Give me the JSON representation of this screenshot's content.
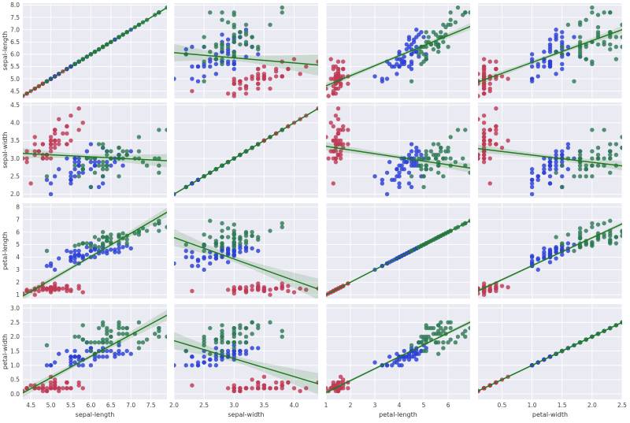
{
  "chart_data": {
    "type": "scatter",
    "layout": "pairplot",
    "variables": [
      "sepal-length",
      "sepal-width",
      "petal-length",
      "petal-width"
    ],
    "axes": {
      "sepal-length": {
        "xlim": [
          4.3,
          7.9
        ],
        "ylim": [
          4.2,
          8.08
        ],
        "xticks": [
          "4.5",
          "5.0",
          "5.5",
          "6.0",
          "6.5",
          "7.0",
          "7.5"
        ],
        "yticks": [
          "4.5",
          "5.0",
          "5.5",
          "6.0",
          "6.5",
          "7.0",
          "7.5",
          "8.0"
        ]
      },
      "sepal-width": {
        "xlim": [
          2.0,
          4.4
        ],
        "ylim": [
          1.9,
          4.57
        ],
        "xticks": [
          "2.0",
          "2.5",
          "3.0",
          "3.5",
          "4.0"
        ],
        "yticks": [
          "2.0",
          "2.5",
          "3.0",
          "3.5",
          "4.0",
          "4.5"
        ]
      },
      "petal-length": {
        "xlim": [
          1.0,
          6.9
        ],
        "ylim": [
          0.7,
          8.3
        ],
        "xticks": [
          "1",
          "2",
          "3",
          "4",
          "5",
          "6"
        ],
        "yticks": [
          "1",
          "2",
          "3",
          "4",
          "5",
          "6",
          "7",
          "8"
        ]
      },
      "petal-width": {
        "xlim": [
          0.1,
          2.5
        ],
        "ylim": [
          -0.19,
          3.14
        ],
        "xticks": [
          "0.5",
          "1.0",
          "1.5",
          "2.0",
          "2.5"
        ],
        "yticks": [
          "0.0",
          "0.5",
          "1.0",
          "1.5",
          "2.0",
          "2.5",
          "3.0"
        ]
      }
    },
    "grid": true,
    "regression": {
      "fit": "linear",
      "ci_band": true,
      "color": "#1f7a1f"
    },
    "colors": {
      "background": "#eaeaf2",
      "grid": "#ffffff",
      "species_1": "#c03a55",
      "species_2": "#2b40d4",
      "species_3": "#2f7a56"
    },
    "groups": [
      {
        "color_key": "species_1",
        "points": [
          [
            5.1,
            3.5,
            1.4,
            0.2
          ],
          [
            4.9,
            3.0,
            1.4,
            0.2
          ],
          [
            4.7,
            3.2,
            1.3,
            0.2
          ],
          [
            4.6,
            3.1,
            1.5,
            0.2
          ],
          [
            5.0,
            3.6,
            1.4,
            0.2
          ],
          [
            5.4,
            3.9,
            1.7,
            0.4
          ],
          [
            4.6,
            3.4,
            1.4,
            0.3
          ],
          [
            5.0,
            3.4,
            1.5,
            0.2
          ],
          [
            4.4,
            2.9,
            1.4,
            0.2
          ],
          [
            4.9,
            3.1,
            1.5,
            0.1
          ],
          [
            5.4,
            3.7,
            1.5,
            0.2
          ],
          [
            4.8,
            3.4,
            1.6,
            0.2
          ],
          [
            4.8,
            3.0,
            1.4,
            0.1
          ],
          [
            4.3,
            3.0,
            1.1,
            0.1
          ],
          [
            5.8,
            4.0,
            1.2,
            0.2
          ],
          [
            5.7,
            4.4,
            1.5,
            0.4
          ],
          [
            5.4,
            3.9,
            1.3,
            0.4
          ],
          [
            5.1,
            3.5,
            1.4,
            0.3
          ],
          [
            5.7,
            3.8,
            1.7,
            0.3
          ],
          [
            5.1,
            3.8,
            1.5,
            0.3
          ],
          [
            5.4,
            3.4,
            1.7,
            0.2
          ],
          [
            5.1,
            3.7,
            1.5,
            0.4
          ],
          [
            4.6,
            3.6,
            1.0,
            0.2
          ],
          [
            5.1,
            3.3,
            1.7,
            0.5
          ],
          [
            4.8,
            3.4,
            1.9,
            0.2
          ],
          [
            5.0,
            3.0,
            1.6,
            0.2
          ],
          [
            5.0,
            3.4,
            1.6,
            0.4
          ],
          [
            5.2,
            3.5,
            1.5,
            0.2
          ],
          [
            5.2,
            3.4,
            1.4,
            0.2
          ],
          [
            4.7,
            3.2,
            1.6,
            0.2
          ],
          [
            4.8,
            3.1,
            1.6,
            0.2
          ],
          [
            5.4,
            3.4,
            1.5,
            0.4
          ],
          [
            5.2,
            4.1,
            1.5,
            0.1
          ],
          [
            5.5,
            4.2,
            1.4,
            0.2
          ],
          [
            4.9,
            3.1,
            1.5,
            0.1
          ],
          [
            5.0,
            3.2,
            1.2,
            0.2
          ],
          [
            5.5,
            3.5,
            1.3,
            0.2
          ],
          [
            4.9,
            3.1,
            1.5,
            0.1
          ],
          [
            4.4,
            3.0,
            1.3,
            0.2
          ],
          [
            5.1,
            3.4,
            1.5,
            0.2
          ],
          [
            5.0,
            3.5,
            1.3,
            0.3
          ],
          [
            4.5,
            2.3,
            1.3,
            0.3
          ],
          [
            4.4,
            3.2,
            1.3,
            0.2
          ],
          [
            5.0,
            3.5,
            1.6,
            0.6
          ],
          [
            5.1,
            3.8,
            1.9,
            0.4
          ],
          [
            4.8,
            3.0,
            1.4,
            0.3
          ],
          [
            5.1,
            3.8,
            1.6,
            0.2
          ],
          [
            4.6,
            3.2,
            1.4,
            0.2
          ],
          [
            5.3,
            3.7,
            1.5,
            0.2
          ],
          [
            5.0,
            3.3,
            1.4,
            0.2
          ]
        ]
      },
      {
        "color_key": "species_2",
        "points": [
          [
            7.0,
            3.2,
            4.7,
            1.4
          ],
          [
            6.4,
            3.2,
            4.5,
            1.5
          ],
          [
            6.9,
            3.1,
            4.9,
            1.5
          ],
          [
            5.5,
            2.3,
            4.0,
            1.3
          ],
          [
            6.5,
            2.8,
            4.6,
            1.5
          ],
          [
            5.7,
            2.8,
            4.5,
            1.3
          ],
          [
            6.3,
            3.3,
            4.7,
            1.6
          ],
          [
            4.9,
            2.4,
            3.3,
            1.0
          ],
          [
            6.6,
            2.9,
            4.6,
            1.3
          ],
          [
            5.2,
            2.7,
            3.9,
            1.4
          ],
          [
            5.0,
            2.0,
            3.5,
            1.0
          ],
          [
            5.9,
            3.0,
            4.2,
            1.5
          ],
          [
            6.0,
            2.2,
            4.0,
            1.0
          ],
          [
            6.1,
            2.9,
            4.7,
            1.4
          ],
          [
            5.6,
            2.9,
            3.6,
            1.3
          ],
          [
            6.7,
            3.1,
            4.4,
            1.4
          ],
          [
            5.6,
            3.0,
            4.5,
            1.5
          ],
          [
            5.8,
            2.7,
            4.1,
            1.0
          ],
          [
            6.2,
            2.2,
            4.5,
            1.5
          ],
          [
            5.6,
            2.5,
            3.9,
            1.1
          ],
          [
            5.9,
            3.2,
            4.8,
            1.8
          ],
          [
            6.1,
            2.8,
            4.0,
            1.3
          ],
          [
            6.3,
            2.5,
            4.9,
            1.5
          ],
          [
            6.1,
            2.8,
            4.7,
            1.2
          ],
          [
            6.4,
            2.9,
            4.3,
            1.3
          ],
          [
            6.6,
            3.0,
            4.4,
            1.4
          ],
          [
            6.8,
            2.8,
            4.8,
            1.4
          ],
          [
            6.7,
            3.0,
            5.0,
            1.7
          ],
          [
            6.0,
            2.9,
            4.5,
            1.5
          ],
          [
            5.7,
            2.6,
            3.5,
            1.0
          ],
          [
            5.5,
            2.4,
            3.8,
            1.1
          ],
          [
            5.5,
            2.4,
            3.7,
            1.0
          ],
          [
            5.8,
            2.7,
            3.9,
            1.2
          ],
          [
            6.0,
            2.7,
            5.1,
            1.6
          ],
          [
            5.4,
            3.0,
            4.5,
            1.5
          ],
          [
            6.0,
            3.4,
            4.5,
            1.6
          ],
          [
            6.7,
            3.1,
            4.7,
            1.5
          ],
          [
            6.3,
            2.3,
            4.4,
            1.3
          ],
          [
            5.6,
            3.0,
            4.1,
            1.3
          ],
          [
            5.5,
            2.5,
            4.0,
            1.3
          ],
          [
            5.5,
            2.6,
            4.4,
            1.2
          ],
          [
            6.1,
            3.0,
            4.6,
            1.4
          ],
          [
            5.8,
            2.6,
            4.0,
            1.2
          ],
          [
            5.0,
            2.3,
            3.3,
            1.0
          ],
          [
            5.6,
            2.7,
            4.2,
            1.3
          ],
          [
            5.7,
            3.0,
            4.2,
            1.2
          ],
          [
            5.7,
            2.9,
            4.2,
            1.3
          ],
          [
            6.2,
            2.9,
            4.3,
            1.3
          ],
          [
            5.1,
            2.5,
            3.0,
            1.1
          ],
          [
            5.7,
            2.8,
            4.1,
            1.3
          ]
        ]
      },
      {
        "color_key": "species_3",
        "points": [
          [
            6.3,
            3.3,
            6.0,
            2.5
          ],
          [
            5.8,
            2.7,
            5.1,
            1.9
          ],
          [
            7.1,
            3.0,
            5.9,
            2.1
          ],
          [
            6.3,
            2.9,
            5.6,
            1.8
          ],
          [
            6.5,
            3.0,
            5.8,
            2.2
          ],
          [
            7.6,
            3.0,
            6.6,
            2.1
          ],
          [
            4.9,
            2.5,
            4.5,
            1.7
          ],
          [
            7.3,
            2.9,
            6.3,
            1.8
          ],
          [
            6.7,
            2.5,
            5.8,
            1.8
          ],
          [
            7.2,
            3.6,
            6.1,
            2.5
          ],
          [
            6.5,
            3.2,
            5.1,
            2.0
          ],
          [
            6.4,
            2.7,
            5.3,
            1.9
          ],
          [
            6.8,
            3.0,
            5.5,
            2.1
          ],
          [
            5.7,
            2.5,
            5.0,
            2.0
          ],
          [
            5.8,
            2.8,
            5.1,
            2.4
          ],
          [
            6.4,
            3.2,
            5.3,
            2.3
          ],
          [
            6.5,
            3.0,
            5.5,
            1.8
          ],
          [
            7.7,
            3.8,
            6.7,
            2.2
          ],
          [
            7.7,
            2.6,
            6.9,
            2.3
          ],
          [
            6.0,
            2.2,
            5.0,
            1.5
          ],
          [
            6.9,
            3.2,
            5.7,
            2.3
          ],
          [
            5.6,
            2.8,
            4.9,
            2.0
          ],
          [
            7.7,
            2.8,
            6.7,
            2.0
          ],
          [
            6.3,
            2.7,
            4.9,
            1.8
          ],
          [
            6.7,
            3.3,
            5.7,
            2.1
          ],
          [
            7.2,
            3.2,
            6.0,
            1.8
          ],
          [
            6.2,
            2.8,
            4.8,
            1.8
          ],
          [
            6.1,
            3.0,
            4.9,
            1.8
          ],
          [
            6.4,
            2.8,
            5.6,
            2.1
          ],
          [
            7.2,
            3.0,
            5.8,
            1.6
          ],
          [
            7.4,
            2.8,
            6.1,
            1.9
          ],
          [
            7.9,
            3.8,
            6.4,
            2.0
          ],
          [
            6.4,
            2.8,
            5.6,
            2.2
          ],
          [
            6.3,
            2.8,
            5.1,
            1.5
          ],
          [
            6.1,
            2.6,
            5.6,
            1.4
          ],
          [
            7.7,
            3.0,
            6.1,
            2.3
          ],
          [
            6.3,
            3.4,
            5.6,
            2.4
          ],
          [
            6.4,
            3.1,
            5.5,
            1.8
          ],
          [
            6.0,
            3.0,
            4.8,
            1.8
          ],
          [
            6.9,
            3.1,
            5.4,
            2.1
          ],
          [
            6.7,
            3.1,
            5.6,
            2.4
          ],
          [
            6.9,
            3.1,
            5.1,
            2.3
          ],
          [
            5.8,
            2.7,
            5.1,
            1.9
          ],
          [
            6.8,
            3.2,
            5.9,
            2.3
          ],
          [
            6.7,
            3.3,
            5.7,
            2.5
          ],
          [
            6.7,
            3.0,
            5.2,
            2.3
          ],
          [
            6.3,
            2.5,
            5.0,
            1.9
          ],
          [
            6.5,
            3.0,
            5.2,
            2.0
          ],
          [
            6.2,
            3.4,
            5.4,
            2.3
          ],
          [
            5.9,
            3.0,
            5.1,
            1.8
          ]
        ]
      }
    ]
  }
}
